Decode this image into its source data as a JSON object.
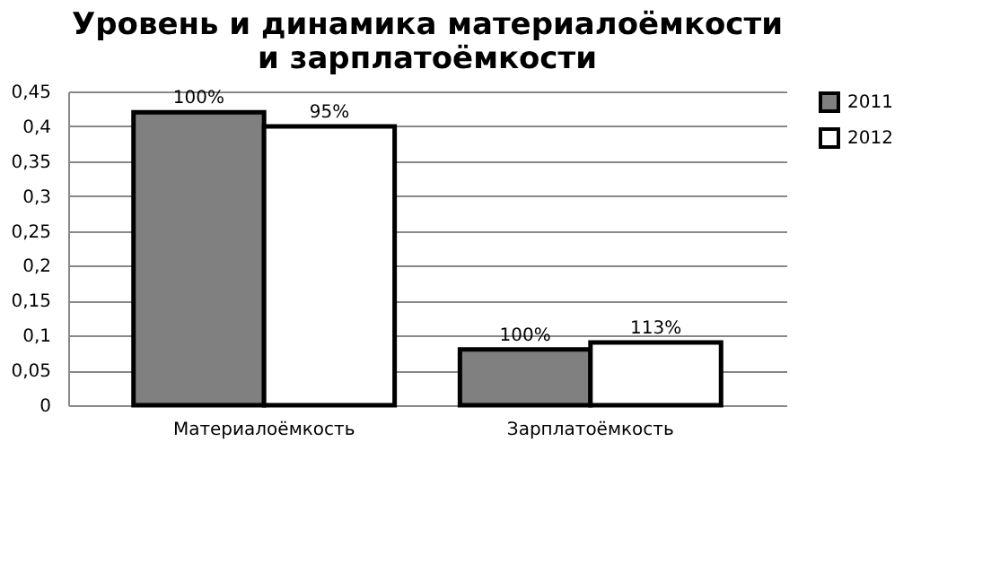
{
  "chart_data": {
    "type": "bar",
    "title": [
      "Уровень и динамика материалоёмкости",
      "и зарплатоёмкости"
    ],
    "categories": [
      "Материалоёмкость",
      "Зарплатоёмкость"
    ],
    "series": [
      {
        "name": "2011",
        "color": "#808080",
        "values": [
          0.42,
          0.08
        ]
      },
      {
        "name": "2012",
        "color": "#ffffff",
        "values": [
          0.4,
          0.09
        ]
      }
    ],
    "annotations": [
      {
        "text": "100%",
        "x": "Материалоёмкость",
        "y": 0.42
      },
      {
        "text": "95%",
        "x": "Материалоёмкость",
        "y": 0.4
      },
      {
        "text": "100%",
        "x": "Зарплатоёмкость",
        "y": 0.08
      },
      {
        "text": "113%",
        "x": "Зарплатоёмкость",
        "y": 0.09
      }
    ],
    "ylim": [
      0,
      0.45
    ],
    "yticks": [
      {
        "value": 0,
        "label": "0"
      },
      {
        "value": 0.05,
        "label": "0,05"
      },
      {
        "value": 0.1,
        "label": "0,1"
      },
      {
        "value": 0.15,
        "label": "0,15"
      },
      {
        "value": 0.2,
        "label": "0,2"
      },
      {
        "value": 0.25,
        "label": "0,25"
      },
      {
        "value": 0.3,
        "label": "0,3"
      },
      {
        "value": 0.35,
        "label": "0,35"
      },
      {
        "value": 0.4,
        "label": "0,4"
      },
      {
        "value": 0.45,
        "label": "0,45"
      }
    ],
    "grid": "y",
    "legend": "right"
  }
}
